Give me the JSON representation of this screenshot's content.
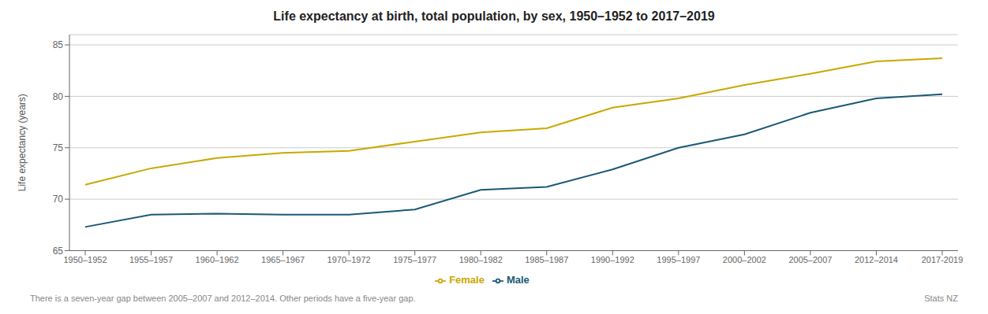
{
  "chart_data": {
    "type": "line",
    "title": "Life expectancy at birth, total population, by sex, 1950–1952 to 2017–2019",
    "y_label": "Life expectancy (years)",
    "categories": [
      "1950–1952",
      "1955–1957",
      "1960–1962",
      "1965–1967",
      "1970–1972",
      "1975–1977",
      "1980–1982",
      "1985–1987",
      "1990–1992",
      "1995–1997",
      "2000–2002",
      "2005–2007",
      "2012–2014",
      "2017-2019"
    ],
    "series": [
      {
        "name": "Male",
        "color": "#1a5976",
        "values": [
          67.3,
          68.5,
          68.6,
          68.5,
          68.5,
          69.0,
          70.9,
          71.2,
          72.9,
          75.0,
          76.3,
          78.4,
          79.8,
          80.2
        ]
      },
      {
        "name": "Female",
        "color": "#c9a800",
        "values": [
          71.4,
          73.0,
          74.0,
          74.5,
          74.7,
          75.6,
          76.5,
          76.9,
          78.9,
          79.8,
          81.1,
          82.2,
          83.4,
          83.7
        ]
      }
    ],
    "ylim": [
      65,
      86
    ],
    "yticks": [
      65,
      70,
      75,
      80,
      85
    ],
    "grid": true,
    "legend": "bottom",
    "annotations": [
      "There is a seven-year gap between 2005–2007 and 2012–2014. Other periods have a five-year gap.",
      "Stats NZ"
    ]
  }
}
